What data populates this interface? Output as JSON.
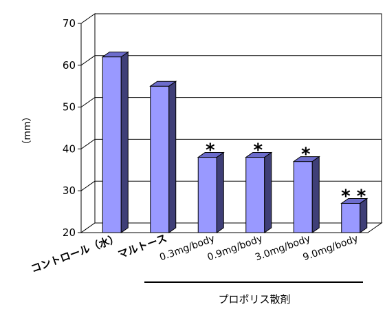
{
  "chart_data": {
    "type": "bar",
    "categories": [
      "コントロール（水）",
      "マルトース",
      "0.3mg/body",
      "0.9mg/body",
      "3.0mg/body",
      "9.0mg/body"
    ],
    "values": [
      62,
      55,
      38,
      38,
      37,
      27
    ],
    "significance": [
      "",
      "",
      "*",
      "*",
      "*",
      "**"
    ],
    "ylabel": "（mm）",
    "xlabel": "",
    "ylim": [
      20,
      70
    ],
    "yticks": [
      "20",
      "30",
      "40",
      "50",
      "60",
      "70"
    ],
    "group_label": "プロポリス散剤",
    "grid": true,
    "bar_color": "#9999ff",
    "bar_side_color": "#3f3f77",
    "bar_top_color": "#6c6ccc"
  }
}
